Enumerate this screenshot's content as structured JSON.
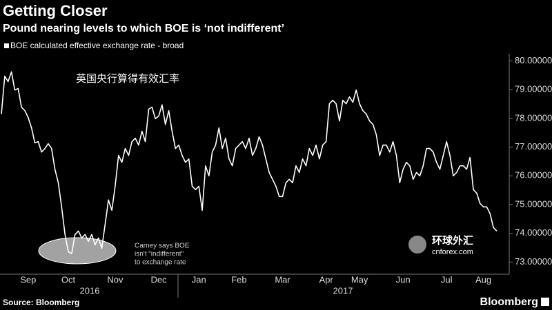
{
  "chart_data": {
    "type": "line",
    "title": "Getting Closer",
    "subtitle": "Pound nearing levels to which BOE is ‘not indifferent’",
    "legend_label": "BOE calculated effective exchange rate - broad",
    "annotation_cn": "英国央行算得有效汇率",
    "annotation": [
      "Carney says BOE",
      "isn't \"indifferent\"",
      "to exchange rate"
    ],
    "source": "Source: Bloomberg",
    "brand": "Bloomberg",
    "watermark": [
      "环球外汇",
      "cnforex.com"
    ],
    "years": [
      "2016",
      "2017"
    ],
    "color": "#ffffff",
    "categories": [
      null,
      null,
      null,
      null,
      null,
      null,
      null,
      null,
      "Sep",
      null,
      null,
      null,
      null,
      null,
      null,
      null,
      null,
      null,
      null,
      null,
      "Oct",
      null,
      null,
      null,
      null,
      null,
      null,
      null,
      null,
      null,
      null,
      null,
      null,
      null,
      "Nov",
      null,
      null,
      null,
      null,
      null,
      null,
      null,
      null,
      null,
      null,
      null,
      null,
      "Dec",
      null,
      null,
      null,
      null,
      null,
      null,
      null,
      null,
      null,
      null,
      null,
      "Jan",
      null,
      null,
      null,
      null,
      null,
      null,
      null,
      null,
      null,
      null,
      null,
      "Feb",
      null,
      null,
      null,
      null,
      null,
      null,
      null,
      null,
      null,
      null,
      null,
      null,
      "Mar",
      null,
      null,
      null,
      null,
      null,
      null,
      null,
      null,
      null,
      null,
      null,
      null,
      "Apr",
      null,
      null,
      null,
      null,
      null,
      null,
      null,
      null,
      null,
      "May",
      null,
      null,
      null,
      null,
      null,
      null,
      null,
      null,
      null,
      null,
      null,
      null,
      "Jun",
      null,
      null,
      null,
      null,
      null,
      null,
      null,
      null,
      null,
      null,
      null,
      null,
      "Jul",
      null,
      null,
      null,
      null,
      null,
      null,
      null,
      null,
      null,
      null,
      "Aug",
      null,
      null,
      null,
      null
    ],
    "values": [
      78.15,
      79.47,
      79.28,
      79.62,
      78.99,
      79.04,
      78.39,
      78.27,
      78.03,
      77.67,
      77.15,
      77.19,
      76.83,
      76.95,
      77.12,
      76.95,
      76.23,
      75.76,
      74.92,
      73.96,
      73.36,
      73.29,
      73.96,
      74.08,
      73.84,
      73.96,
      73.72,
      73.96,
      73.6,
      73.84,
      73.48,
      74.32,
      75.16,
      74.8,
      75.64,
      76.71,
      76.47,
      76.95,
      76.71,
      77.19,
      77.31,
      77.07,
      77.55,
      77.19,
      78.32,
      78.39,
      77.99,
      78.08,
      78.47,
      77.79,
      78.27,
      77.55,
      76.95,
      77.07,
      76.71,
      76.47,
      76.59,
      75.64,
      75.52,
      75.64,
      74.8,
      76.35,
      76.0,
      76.83,
      77.07,
      77.67,
      76.95,
      77.31,
      76.59,
      76.35,
      76.95,
      77.07,
      77.19,
      76.95,
      77.31,
      76.71,
      76.95,
      77.36,
      77.07,
      76.59,
      76.12,
      75.88,
      75.64,
      75.28,
      75.28,
      75.76,
      75.88,
      75.76,
      76.35,
      76.12,
      76.59,
      76.35,
      76.95,
      76.71,
      77.07,
      76.59,
      77.07,
      77.19,
      78.51,
      78.63,
      78.51,
      77.91,
      78.63,
      78.51,
      78.75,
      78.56,
      78.99,
      78.51,
      78.27,
      78.15,
      77.91,
      77.79,
      77.43,
      76.71,
      77.07,
      77.07,
      76.83,
      77.19,
      76.71,
      75.76,
      76.23,
      76.47,
      76.35,
      75.88,
      76.12,
      76.0,
      76.35,
      76.95,
      76.95,
      76.83,
      76.47,
      76.23,
      76.71,
      77.19,
      76.71,
      76.0,
      76.12,
      76.35,
      76.35,
      76.23,
      76.64,
      75.52,
      75.4,
      75.04,
      74.92,
      74.92,
      74.68,
      74.2,
      74.08
    ],
    "ylim": [
      72.65,
      80.25
    ],
    "yticks": [
      {
        "value": 73,
        "label": "73.00000"
      },
      {
        "value": 74,
        "label": "74.00000"
      },
      {
        "value": 75,
        "label": "75.00000"
      },
      {
        "value": 76,
        "label": "76.00000"
      },
      {
        "value": 77,
        "label": "77.00000"
      },
      {
        "value": 78,
        "label": "78.00000"
      },
      {
        "value": 79,
        "label": "79.00000"
      },
      {
        "value": 80,
        "label": "80.00000"
      }
    ],
    "grid": false
  }
}
